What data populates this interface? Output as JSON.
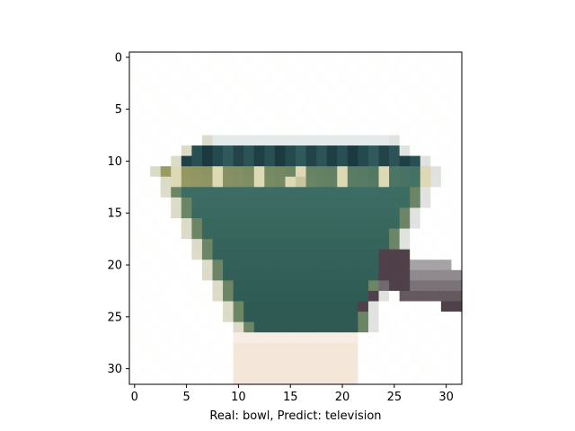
{
  "chart_data": {
    "type": "image",
    "image_size": [
      32,
      32
    ],
    "xlim": [
      -0.5,
      31.5
    ],
    "ylim": [
      31.5,
      -0.5
    ],
    "y_inverted": true,
    "xticks": [
      0,
      5,
      10,
      15,
      20,
      25,
      30
    ],
    "yticks": [
      0,
      5,
      10,
      15,
      20,
      25,
      30
    ],
    "xlabel": "Real: bowl, Predict: television",
    "ylabel": "",
    "title": "",
    "grid": false,
    "colors": {
      "background": "#ffffff",
      "bowl_dark": "#2e5a53",
      "bowl_mid": "#3d6e64",
      "rim_dark": "#1b3a40",
      "rim_olive": "#9a9b63",
      "rim_highlight": "#dcd9b4",
      "spoon_grey": "#a6a3a6",
      "spoon_dark": "#4f4049",
      "plate_tint": "#f3e1d3"
    }
  }
}
